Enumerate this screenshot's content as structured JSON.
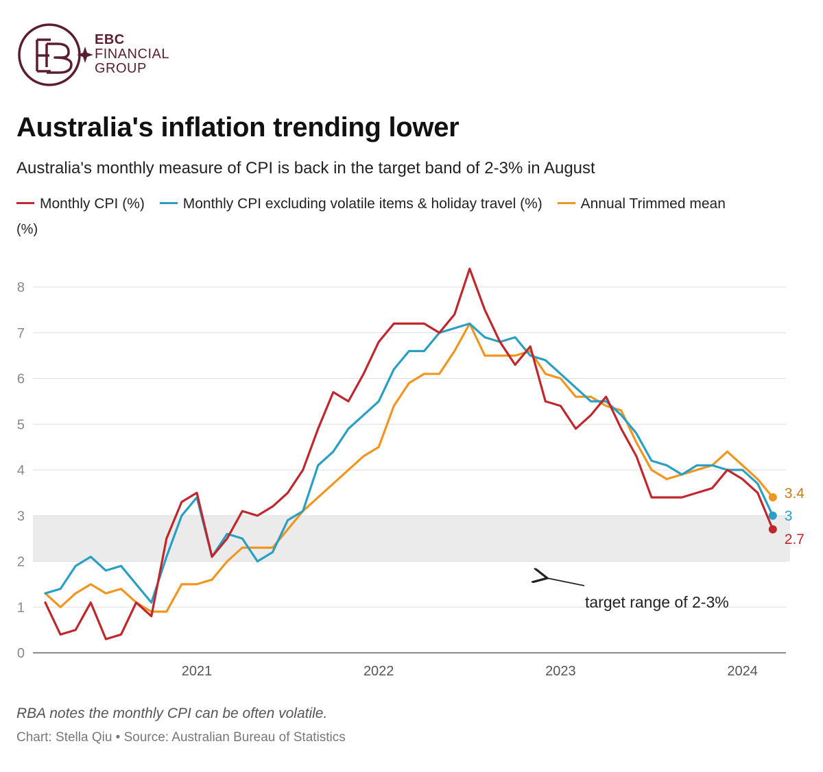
{
  "brand": {
    "line1": "EBC",
    "line2": "FINANCIAL",
    "line3": "GROUP",
    "color": "#5a1f2e"
  },
  "title": "Australia's inflation trending lower",
  "subtitle": "Australia's monthly measure of CPI is back in the target band of 2-3% in August",
  "legend": [
    {
      "label": "Monthly CPI (%)",
      "color": "#c0272d"
    },
    {
      "label": "Monthly CPI excluding volatile items & holiday travel (%)",
      "color": "#2a9fc4"
    },
    {
      "label": "Annual Trimmed mean",
      "color": "#f0961e"
    }
  ],
  "unit_label": "(%)",
  "note": "RBA notes the monthly CPI can be often volatile.",
  "source": "Chart: Stella Qiu • Source: Australian Bureau of Statistics",
  "chart_data": {
    "type": "line",
    "x": [
      "2020-08",
      "2020-09",
      "2020-10",
      "2020-11",
      "2020-12",
      "2021-01",
      "2021-02",
      "2021-03",
      "2021-04",
      "2021-05",
      "2021-06",
      "2021-07",
      "2021-08",
      "2021-09",
      "2021-10",
      "2021-11",
      "2021-12",
      "2022-01",
      "2022-02",
      "2022-03",
      "2022-04",
      "2022-05",
      "2022-06",
      "2022-07",
      "2022-08",
      "2022-09",
      "2022-10",
      "2022-11",
      "2022-12",
      "2023-01",
      "2023-02",
      "2023-03",
      "2023-04",
      "2023-05",
      "2023-06",
      "2023-07",
      "2023-08",
      "2023-09",
      "2023-10",
      "2023-11",
      "2023-12",
      "2024-01",
      "2024-02",
      "2024-03",
      "2024-04",
      "2024-05",
      "2024-06",
      "2024-07",
      "2024-08"
    ],
    "series": [
      {
        "name": "Monthly CPI (%)",
        "color": "#c0272d",
        "values": [
          1.1,
          0.4,
          0.5,
          1.1,
          0.3,
          0.4,
          1.1,
          0.8,
          2.5,
          3.3,
          3.5,
          2.1,
          2.5,
          3.1,
          3.0,
          3.2,
          3.5,
          4.0,
          4.9,
          5.7,
          5.5,
          6.1,
          6.8,
          7.2,
          7.2,
          7.2,
          7.0,
          7.4,
          8.4,
          7.5,
          6.8,
          6.3,
          6.7,
          5.5,
          5.4,
          4.9,
          5.2,
          5.6,
          4.9,
          4.3,
          3.4,
          3.4,
          3.4,
          3.5,
          3.6,
          4.0,
          3.8,
          3.5,
          2.7
        ]
      },
      {
        "name": "Monthly CPI excluding volatile items & holiday travel (%)",
        "color": "#2a9fc4",
        "values": [
          1.3,
          1.4,
          1.9,
          2.1,
          1.8,
          1.9,
          1.5,
          1.1,
          2.1,
          3.0,
          3.4,
          2.1,
          2.6,
          2.5,
          2.0,
          2.2,
          2.9,
          3.1,
          4.1,
          4.4,
          4.9,
          5.2,
          5.5,
          6.2,
          6.6,
          6.6,
          7.0,
          7.1,
          7.2,
          6.9,
          6.8,
          6.9,
          6.5,
          6.4,
          6.1,
          5.8,
          5.5,
          5.5,
          5.2,
          4.8,
          4.2,
          4.1,
          3.9,
          4.1,
          4.1,
          4.0,
          4.0,
          3.7,
          3.0
        ]
      },
      {
        "name": "Annual Trimmed mean",
        "color": "#f0961e",
        "values": [
          1.3,
          1.0,
          1.3,
          1.5,
          1.3,
          1.4,
          1.1,
          0.9,
          0.9,
          1.5,
          1.5,
          1.6,
          2.0,
          2.3,
          2.3,
          2.3,
          2.7,
          3.1,
          3.4,
          3.7,
          4.0,
          4.3,
          4.5,
          5.4,
          5.9,
          6.1,
          6.1,
          6.6,
          7.2,
          6.5,
          6.5,
          6.5,
          6.6,
          6.1,
          6.0,
          5.6,
          5.6,
          5.4,
          5.3,
          4.6,
          4.0,
          3.8,
          3.9,
          4.0,
          4.1,
          4.4,
          4.1,
          3.8,
          3.4
        ]
      }
    ],
    "end_labels": [
      "2.7",
      "3",
      "3.4"
    ],
    "end_label_colors": [
      "#c0272d",
      "#2a9fc4",
      "#cc7a12"
    ],
    "target_band": [
      2,
      3
    ],
    "annotation": "target range of 2-3%",
    "ylim": [
      0,
      8
    ],
    "yticks": [
      0,
      1,
      2,
      3,
      4,
      5,
      6,
      7,
      8
    ],
    "xtick_labels": [
      "2021",
      "2022",
      "2023",
      "2024"
    ],
    "xlabel": "",
    "ylabel": "(%)",
    "grid": true
  }
}
